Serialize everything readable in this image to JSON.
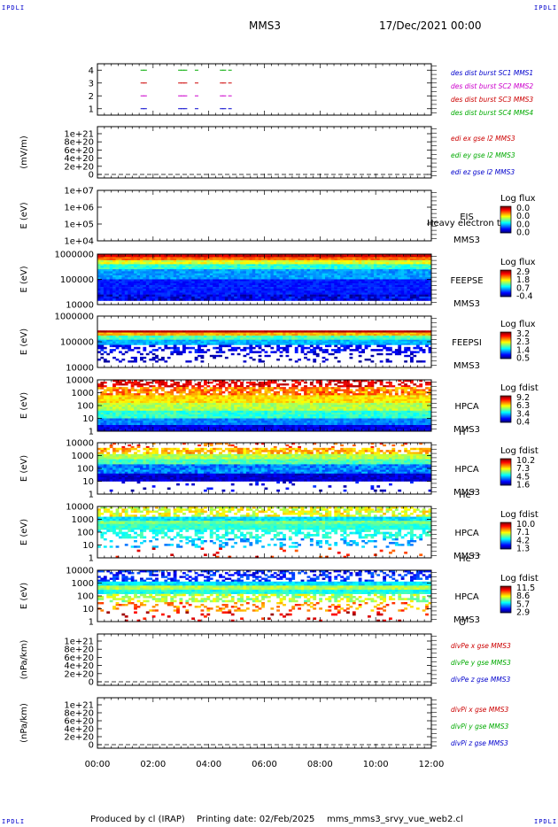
{
  "header": {
    "corner_label": "IPDLI",
    "spacecraft": "MMS3",
    "date": "17/Dec/2021 00:00"
  },
  "footer": {
    "produced_by": "Produced by cl (IRAP)",
    "printing_date": "Printing date: 02/Feb/2025",
    "script": "mms_mms3_srvy_vue_web2.cl"
  },
  "x_axis": {
    "ticks": [
      "00:00",
      "02:00",
      "04:00",
      "06:00",
      "08:00",
      "10:00",
      "12:00"
    ],
    "range_hours": [
      0,
      12
    ]
  },
  "chart_data": [
    {
      "id": "burst",
      "type": "scatter",
      "ylim": [
        0.5,
        4.5
      ],
      "yticks": [
        "1",
        "2",
        "3",
        "4"
      ],
      "legend": [
        {
          "text": "des dist burst SC1 MMS1",
          "color": "#0000cc"
        },
        {
          "text": "des dist burst SC2 MMS2",
          "color": "#cc00cc"
        },
        {
          "text": "des dist burst SC3 MMS3",
          "color": "#cc0000"
        },
        {
          "text": "des dist burst SC4 MMS4",
          "color": "#00aa00"
        }
      ],
      "series": [
        {
          "name": "des dist burst SC1 MMS1",
          "level": 1,
          "color": "#0000cc",
          "x": [
            1.55,
            1.65,
            2.9,
            3.0,
            3.1,
            3.5,
            4.4,
            4.5,
            4.7
          ]
        },
        {
          "name": "des dist burst SC2 MMS2",
          "level": 2,
          "color": "#cc00cc",
          "x": [
            1.55,
            1.65,
            2.9,
            3.0,
            3.1,
            3.5,
            4.4,
            4.5,
            4.7
          ]
        },
        {
          "name": "des dist burst SC3 MMS3",
          "level": 3,
          "color": "#cc0000",
          "x": [
            1.55,
            1.65,
            2.9,
            3.0,
            3.1,
            3.5,
            4.4,
            4.5,
            4.7
          ]
        },
        {
          "name": "des dist burst SC4 MMS4",
          "level": 4,
          "color": "#00aa00",
          "x": [
            1.55,
            1.65,
            2.9,
            3.0,
            3.1,
            3.5,
            4.4,
            4.5,
            4.7
          ]
        }
      ]
    },
    {
      "id": "edi",
      "type": "line",
      "ylabel": "(mV/m)",
      "ylim": [
        0,
        1.2e+21
      ],
      "yticks": [
        "0",
        "2e+20",
        "4e+20",
        "6e+20",
        "8e+20",
        "1e+21"
      ],
      "legend": [
        {
          "text": "edi ex gse l2 MMS3",
          "color": "#cc0000"
        },
        {
          "text": "edi ey gse l2 MMS3",
          "color": "#00aa00"
        },
        {
          "text": "edi ez gse l2 MMS3",
          "color": "#0000cc"
        }
      ],
      "series": []
    },
    {
      "id": "eis",
      "type": "heatmap",
      "ylabel": "E (eV)",
      "yticks": [
        "1e+04",
        "1e+05",
        "1e+06",
        "1e+07"
      ],
      "label_lines": [
        "EIS",
        "MMS3"
      ],
      "overlay_text": "Heavy electron tof",
      "colorbar": {
        "title": "Log flux",
        "ticks": [
          "0.0",
          "0.0",
          "0.0",
          "0.0"
        ]
      },
      "bands": []
    },
    {
      "id": "feeps_e",
      "type": "heatmap",
      "ylabel": "E (eV)",
      "yticks": [
        "10000",
        "100000",
        "1000000"
      ],
      "label_lines": [
        "FEEPSE",
        "MMS3"
      ],
      "colorbar": {
        "title": "Log flux",
        "ticks": [
          "2.9",
          "1.8",
          "0.7",
          "-0.4"
        ]
      },
      "bands": [
        {
          "from": 0.0,
          "to": 0.06,
          "level": 0.92,
          "noise": 0.04
        },
        {
          "from": 0.06,
          "to": 0.12,
          "level": 0.78,
          "noise": 0.05
        },
        {
          "from": 0.12,
          "to": 0.2,
          "level": 0.6,
          "noise": 0.06
        },
        {
          "from": 0.2,
          "to": 0.3,
          "level": 0.42,
          "noise": 0.06
        },
        {
          "from": 0.3,
          "to": 0.5,
          "level": 0.28,
          "noise": 0.05
        },
        {
          "from": 0.5,
          "to": 0.8,
          "level": 0.15,
          "noise": 0.04
        },
        {
          "from": 0.8,
          "to": 0.92,
          "level": 0.1,
          "noise": 0.1
        }
      ]
    },
    {
      "id": "feeps_i",
      "type": "heatmap",
      "ylabel": "E (eV)",
      "yticks": [
        "10000",
        "100000",
        "1000000"
      ],
      "label_lines": [
        "FEEPSI",
        "MMS3"
      ],
      "colorbar": {
        "title": "Log flux",
        "ticks": [
          "3.2",
          "2.3",
          "1.4",
          "0.5"
        ]
      },
      "bands": [
        {
          "from": 0.28,
          "to": 0.32,
          "level": 0.95,
          "noise": 0.02
        },
        {
          "from": 0.32,
          "to": 0.38,
          "level": 0.7,
          "noise": 0.05
        },
        {
          "from": 0.38,
          "to": 0.46,
          "level": 0.45,
          "noise": 0.06
        },
        {
          "from": 0.46,
          "to": 0.56,
          "level": 0.3,
          "noise": 0.05
        },
        {
          "from": 0.56,
          "to": 0.72,
          "level": 0.12,
          "noise": 0.06,
          "sparse": 0.5
        },
        {
          "from": 0.72,
          "to": 0.9,
          "level": 0.06,
          "noise": 0.04,
          "sparse": 0.82
        }
      ]
    },
    {
      "id": "hpca_h",
      "type": "heatmap",
      "ylabel": "E (eV)",
      "yticks": [
        "1",
        "10",
        "100",
        "1000",
        "10000"
      ],
      "label_lines": [
        "HPCA",
        "MMS3"
      ],
      "species": "H",
      "species_sup": "+",
      "colorbar": {
        "title": "Log fdist",
        "ticks": [
          "9.2",
          "6.3",
          "3.4",
          "0.4"
        ]
      },
      "bands": [
        {
          "from": 0.0,
          "to": 0.14,
          "level": 0.9,
          "noise": 0.06,
          "sparse": 0.45
        },
        {
          "from": 0.14,
          "to": 0.3,
          "level": 0.75,
          "noise": 0.1,
          "sparse": 0.2
        },
        {
          "from": 0.3,
          "to": 0.45,
          "level": 0.65,
          "noise": 0.06
        },
        {
          "from": 0.45,
          "to": 0.6,
          "level": 0.55,
          "noise": 0.06
        },
        {
          "from": 0.6,
          "to": 0.75,
          "level": 0.42,
          "noise": 0.06
        },
        {
          "from": 0.75,
          "to": 0.88,
          "level": 0.25,
          "noise": 0.05
        },
        {
          "from": 0.88,
          "to": 1.0,
          "level": 0.1,
          "noise": 0.05
        }
      ]
    },
    {
      "id": "hpca_he1",
      "type": "heatmap",
      "ylabel": "E (eV)",
      "yticks": [
        "1",
        "10",
        "100",
        "1000",
        "10000"
      ],
      "label_lines": [
        "HPCA",
        "MMS3"
      ],
      "species": "He",
      "species_sup": "+",
      "colorbar": {
        "title": "Log fdist",
        "ticks": [
          "10.2",
          "7.3",
          "4.5",
          "1.6"
        ]
      },
      "bands": [
        {
          "from": 0.0,
          "to": 0.1,
          "level": 0.8,
          "noise": 0.1,
          "sparse": 0.85
        },
        {
          "from": 0.1,
          "to": 0.22,
          "level": 0.7,
          "noise": 0.08,
          "sparse": 0.3
        },
        {
          "from": 0.22,
          "to": 0.32,
          "level": 0.55,
          "noise": 0.06
        },
        {
          "from": 0.32,
          "to": 0.42,
          "level": 0.45,
          "noise": 0.06
        },
        {
          "from": 0.42,
          "to": 0.6,
          "level": 0.25,
          "noise": 0.08
        },
        {
          "from": 0.6,
          "to": 0.75,
          "level": 0.08,
          "noise": 0.05
        },
        {
          "from": 0.75,
          "to": 0.95,
          "level": 0.1,
          "noise": 0.08,
          "sparse": 0.93
        }
      ]
    },
    {
      "id": "hpca_he2",
      "type": "heatmap",
      "ylabel": "E (eV)",
      "yticks": [
        "1",
        "10",
        "100",
        "1000",
        "10000"
      ],
      "label_lines": [
        "HPCA",
        "MMS3"
      ],
      "species": "He",
      "species_sup": "++",
      "colorbar": {
        "title": "Log fdist",
        "ticks": [
          "10.0",
          "7.1",
          "4.2",
          "1.3"
        ]
      },
      "bands": [
        {
          "from": 0.0,
          "to": 0.2,
          "level": 0.6,
          "noise": 0.1,
          "sparse": 0.4
        },
        {
          "from": 0.2,
          "to": 0.28,
          "level": 0.35,
          "noise": 0.05
        },
        {
          "from": 0.28,
          "to": 0.34,
          "level": 0.5,
          "noise": 0.06
        },
        {
          "from": 0.34,
          "to": 0.45,
          "level": 0.42,
          "noise": 0.05
        },
        {
          "from": 0.45,
          "to": 0.62,
          "level": 0.4,
          "noise": 0.06,
          "sparse": 0.5
        },
        {
          "from": 0.62,
          "to": 0.8,
          "level": 0.3,
          "noise": 0.08,
          "sparse": 0.75
        },
        {
          "from": 0.8,
          "to": 1.0,
          "level": 0.85,
          "noise": 0.08,
          "sparse": 0.95
        }
      ]
    },
    {
      "id": "hpca_o",
      "type": "heatmap",
      "ylabel": "E (eV)",
      "yticks": [
        "1",
        "10",
        "100",
        "1000",
        "10000"
      ],
      "label_lines": [
        "HPCA",
        "MMS3"
      ],
      "species": "O",
      "species_sup": "+",
      "colorbar": {
        "title": "Log fdist",
        "ticks": [
          "11.5",
          "8.6",
          "5.7",
          "2.9"
        ]
      },
      "bands": [
        {
          "from": 0.0,
          "to": 0.22,
          "level": 0.15,
          "noise": 0.08,
          "sparse": 0.55
        },
        {
          "from": 0.22,
          "to": 0.3,
          "level": 0.35,
          "noise": 0.05
        },
        {
          "from": 0.3,
          "to": 0.38,
          "level": 0.55,
          "noise": 0.06
        },
        {
          "from": 0.38,
          "to": 0.46,
          "level": 0.4,
          "noise": 0.06
        },
        {
          "from": 0.46,
          "to": 0.62,
          "level": 0.55,
          "noise": 0.1,
          "sparse": 0.5
        },
        {
          "from": 0.62,
          "to": 0.8,
          "level": 0.75,
          "noise": 0.1,
          "sparse": 0.75
        },
        {
          "from": 0.8,
          "to": 1.0,
          "level": 0.9,
          "noise": 0.08,
          "sparse": 0.9
        }
      ]
    },
    {
      "id": "divpe",
      "type": "line",
      "ylabel": "(nPa/km)",
      "ylim": [
        0,
        1.2e+21
      ],
      "yticks": [
        "0",
        "2e+20",
        "4e+20",
        "6e+20",
        "8e+20",
        "1e+21"
      ],
      "legend": [
        {
          "text": "divPe x gse MMS3",
          "color": "#cc0000"
        },
        {
          "text": "divPe y gse MMS3",
          "color": "#00aa00"
        },
        {
          "text": "divPe z gse MMS3",
          "color": "#0000cc"
        }
      ],
      "series": []
    },
    {
      "id": "divpi",
      "type": "line",
      "ylabel": "(nPa/km)",
      "ylim": [
        0,
        1.2e+21
      ],
      "yticks": [
        "0",
        "2e+20",
        "4e+20",
        "6e+20",
        "8e+20",
        "1e+21"
      ],
      "legend": [
        {
          "text": "divPi x gse MMS3",
          "color": "#cc0000"
        },
        {
          "text": "divPi y gse MMS3",
          "color": "#00aa00"
        },
        {
          "text": "divPi z gse MMS3",
          "color": "#0000cc"
        }
      ],
      "series": []
    }
  ]
}
